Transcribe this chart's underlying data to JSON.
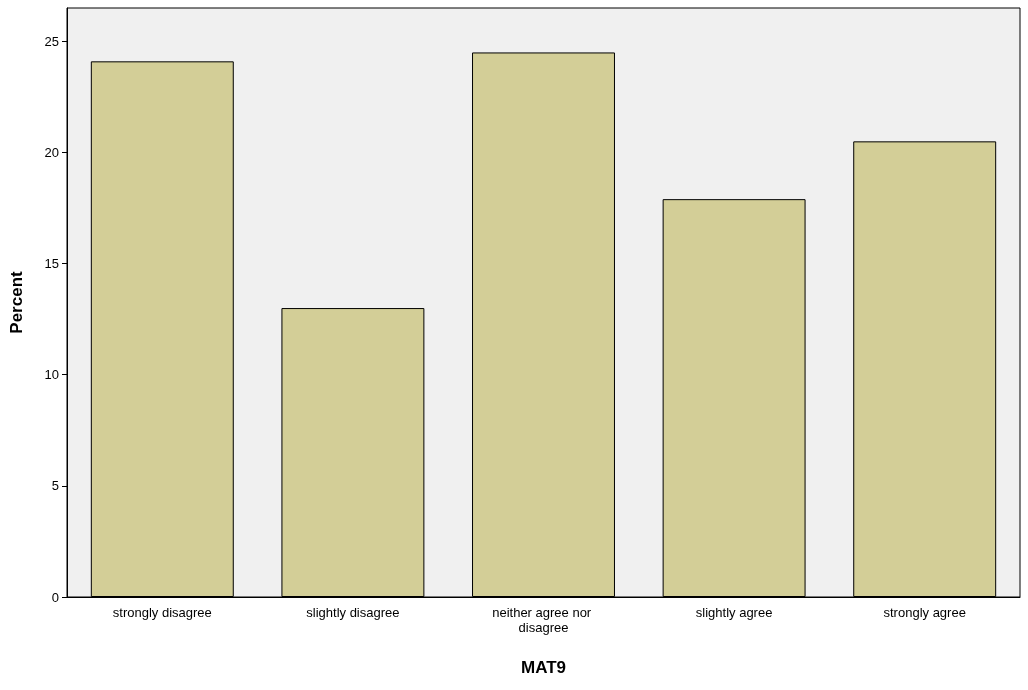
{
  "chart_data": {
    "type": "bar",
    "xlabel": "MAT9",
    "ylabel": "Percent",
    "categories": [
      "strongly disagree",
      "slightly disagree",
      "neither agree nor disagree",
      "slightly agree",
      "strongly agree"
    ],
    "values": [
      24.1,
      13.0,
      24.5,
      17.9,
      20.5
    ],
    "color": "#d3ce97",
    "ylim": [
      0,
      26.5
    ],
    "yticks": [
      0,
      5,
      10,
      15,
      20,
      25
    ],
    "grid": false
  }
}
